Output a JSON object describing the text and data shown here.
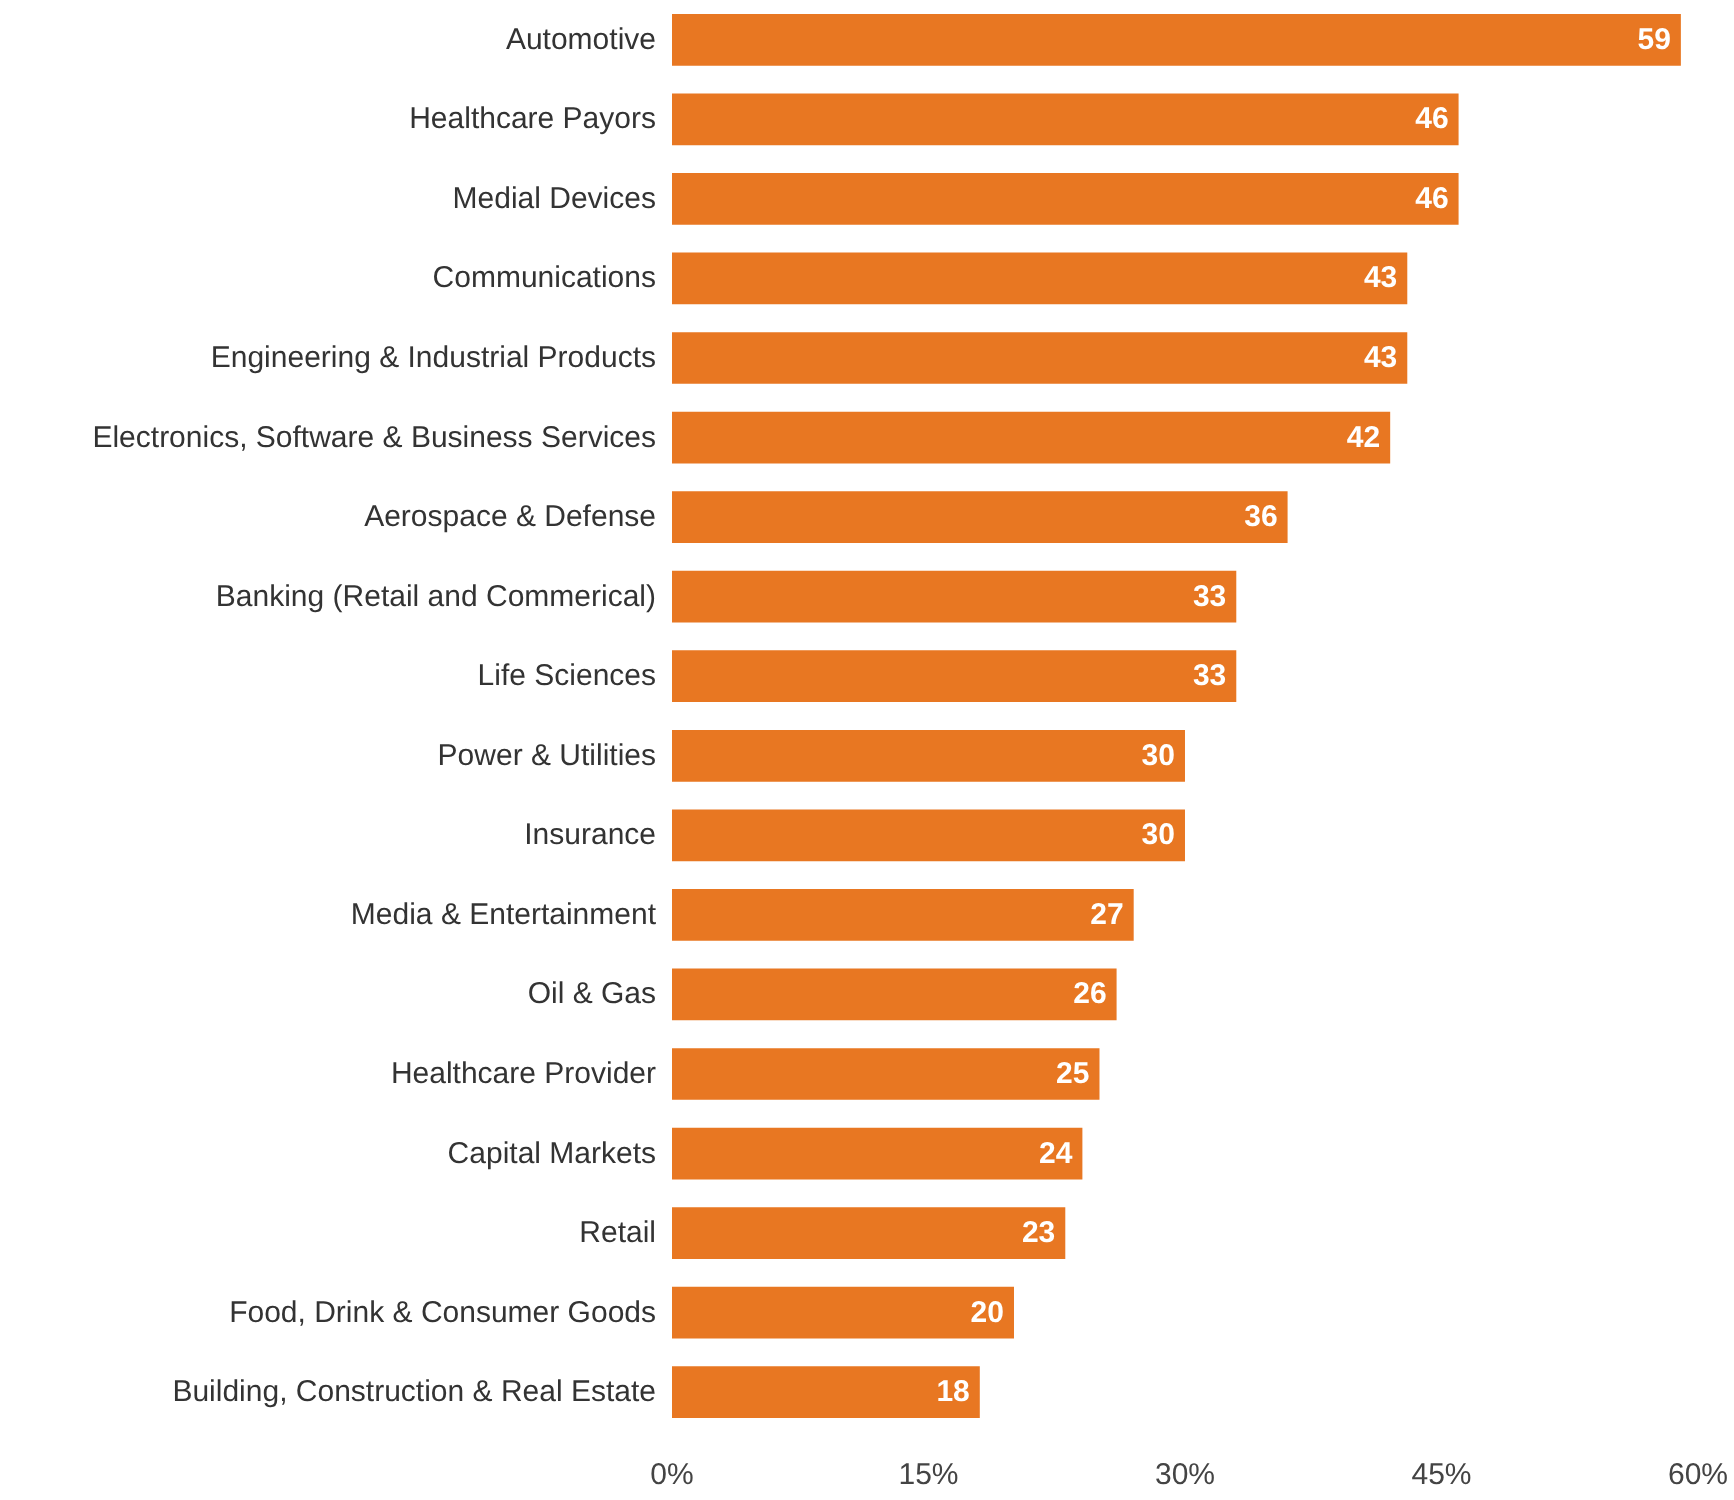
{
  "chart_data": {
    "type": "bar",
    "orientation": "horizontal",
    "categories": [
      "Automotive",
      "Healthcare Payors",
      "Medial Devices",
      "Communications",
      "Engineering & Industrial Products",
      "Electronics, Software & Business Services",
      "Aerospace & Defense",
      "Banking (Retail and Commerical)",
      "Life Sciences",
      "Power & Utilities",
      "Insurance",
      "Media & Entertainment",
      "Oil & Gas",
      "Healthcare Provider",
      "Capital Markets",
      "Retail",
      "Food, Drink & Consumer Goods",
      "Building, Construction & Real Estate"
    ],
    "values": [
      59,
      46,
      46,
      43,
      43,
      42,
      36,
      33,
      33,
      30,
      30,
      27,
      26,
      25,
      24,
      23,
      20,
      18
    ],
    "color": "#e87722",
    "xlim": [
      0,
      60
    ],
    "xticks": [
      {
        "value": 0,
        "label": "0%"
      },
      {
        "value": 15,
        "label": "15%"
      },
      {
        "value": 30,
        "label": "30%"
      },
      {
        "value": 45,
        "label": "45%"
      },
      {
        "value": 60,
        "label": "60%"
      }
    ],
    "data_labels": true
  }
}
